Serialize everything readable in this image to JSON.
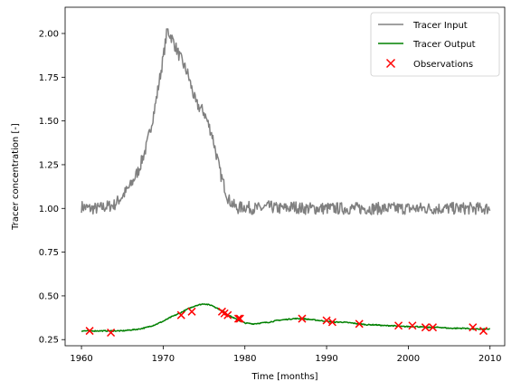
{
  "chart_data": {
    "type": "line",
    "title": "",
    "xlabel": "Time [months]",
    "ylabel": "Tracer concentration [-]",
    "xlim": [
      1958,
      2011.8
    ],
    "ylim": [
      0.215,
      2.15
    ],
    "xticks": [
      1960,
      1970,
      1980,
      1990,
      2000,
      2010
    ],
    "xtick_labels": [
      "1960",
      "1970",
      "1980",
      "1990",
      "2000",
      "2010"
    ],
    "yticks": [
      0.25,
      0.5,
      0.75,
      1.0,
      1.25,
      1.5,
      1.75,
      2.0
    ],
    "ytick_labels": [
      "0.25",
      "0.50",
      "0.75",
      "1.00",
      "1.25",
      "1.50",
      "1.75",
      "2.00"
    ],
    "grid": false,
    "legend_position": "top-right",
    "series": [
      {
        "name": "Tracer Input",
        "kind": "line",
        "color": "#808080",
        "x": [
          1960,
          1961,
          1962,
          1963,
          1964,
          1965,
          1966,
          1967,
          1968,
          1969,
          1970,
          1970.5,
          1971,
          1972,
          1973,
          1974,
          1975,
          1976,
          1977,
          1978,
          1979,
          1980,
          1981,
          1982,
          1983,
          1984,
          1985,
          1986,
          1987,
          1988,
          1989,
          1990,
          1991,
          1992,
          1993,
          1994,
          1995,
          1996,
          1997,
          1998,
          1999,
          2000,
          2001,
          2002,
          2003,
          2004,
          2005,
          2006,
          2007,
          2008,
          2009,
          2010
        ],
        "y": [
          1.01,
          1.0,
          1.0,
          1.01,
          1.02,
          1.07,
          1.13,
          1.22,
          1.36,
          1.58,
          1.86,
          2.02,
          1.98,
          1.87,
          1.77,
          1.6,
          1.55,
          1.42,
          1.2,
          1.05,
          1.0,
          1.01,
          1.0,
          1.0,
          1.01,
          1.0,
          1.0,
          1.01,
          1.0,
          1.0,
          1.0,
          1.0,
          1.0,
          1.0,
          1.0,
          1.0,
          1.0,
          1.0,
          1.0,
          1.0,
          1.0,
          1.0,
          1.0,
          1.0,
          1.0,
          1.0,
          1.0,
          1.0,
          1.0,
          1.0,
          1.0,
          1.0
        ]
      },
      {
        "name": "Tracer Output",
        "kind": "line",
        "color": "#008000",
        "x": [
          1960,
          1961,
          1962,
          1963,
          1964,
          1965,
          1966,
          1967,
          1968,
          1969,
          1970,
          1971,
          1972,
          1973,
          1974,
          1975,
          1976,
          1977,
          1978,
          1979,
          1980,
          1981,
          1982,
          1983,
          1984,
          1985,
          1986,
          1987,
          1988,
          1989,
          1990,
          1991,
          1992,
          1993,
          1994,
          1995,
          1996,
          1997,
          1998,
          1999,
          2000,
          2001,
          2002,
          2003,
          2004,
          2005,
          2006,
          2007,
          2008,
          2009,
          2010
        ],
        "y": [
          0.3,
          0.3,
          0.3,
          0.3,
          0.3,
          0.3,
          0.305,
          0.31,
          0.32,
          0.335,
          0.355,
          0.38,
          0.4,
          0.425,
          0.445,
          0.455,
          0.445,
          0.42,
          0.39,
          0.365,
          0.345,
          0.34,
          0.345,
          0.35,
          0.36,
          0.365,
          0.37,
          0.37,
          0.365,
          0.36,
          0.355,
          0.35,
          0.35,
          0.345,
          0.34,
          0.335,
          0.335,
          0.33,
          0.33,
          0.325,
          0.325,
          0.325,
          0.32,
          0.32,
          0.32,
          0.315,
          0.315,
          0.315,
          0.31,
          0.31,
          0.31
        ]
      },
      {
        "name": "Observations",
        "kind": "scatter",
        "marker": "x",
        "color": "#ff0000",
        "x": [
          1961.0,
          1963.6,
          1972.2,
          1973.5,
          1977.2,
          1977.5,
          1977.9,
          1979.2,
          1979.4,
          1987.0,
          1990.0,
          1990.7,
          1994.0,
          1998.8,
          2000.5,
          2002.1,
          2003.0,
          2007.9,
          2009.2
        ],
        "y": [
          0.3,
          0.29,
          0.39,
          0.41,
          0.41,
          0.4,
          0.39,
          0.37,
          0.37,
          0.37,
          0.36,
          0.35,
          0.34,
          0.33,
          0.33,
          0.32,
          0.32,
          0.32,
          0.3
        ]
      }
    ]
  }
}
